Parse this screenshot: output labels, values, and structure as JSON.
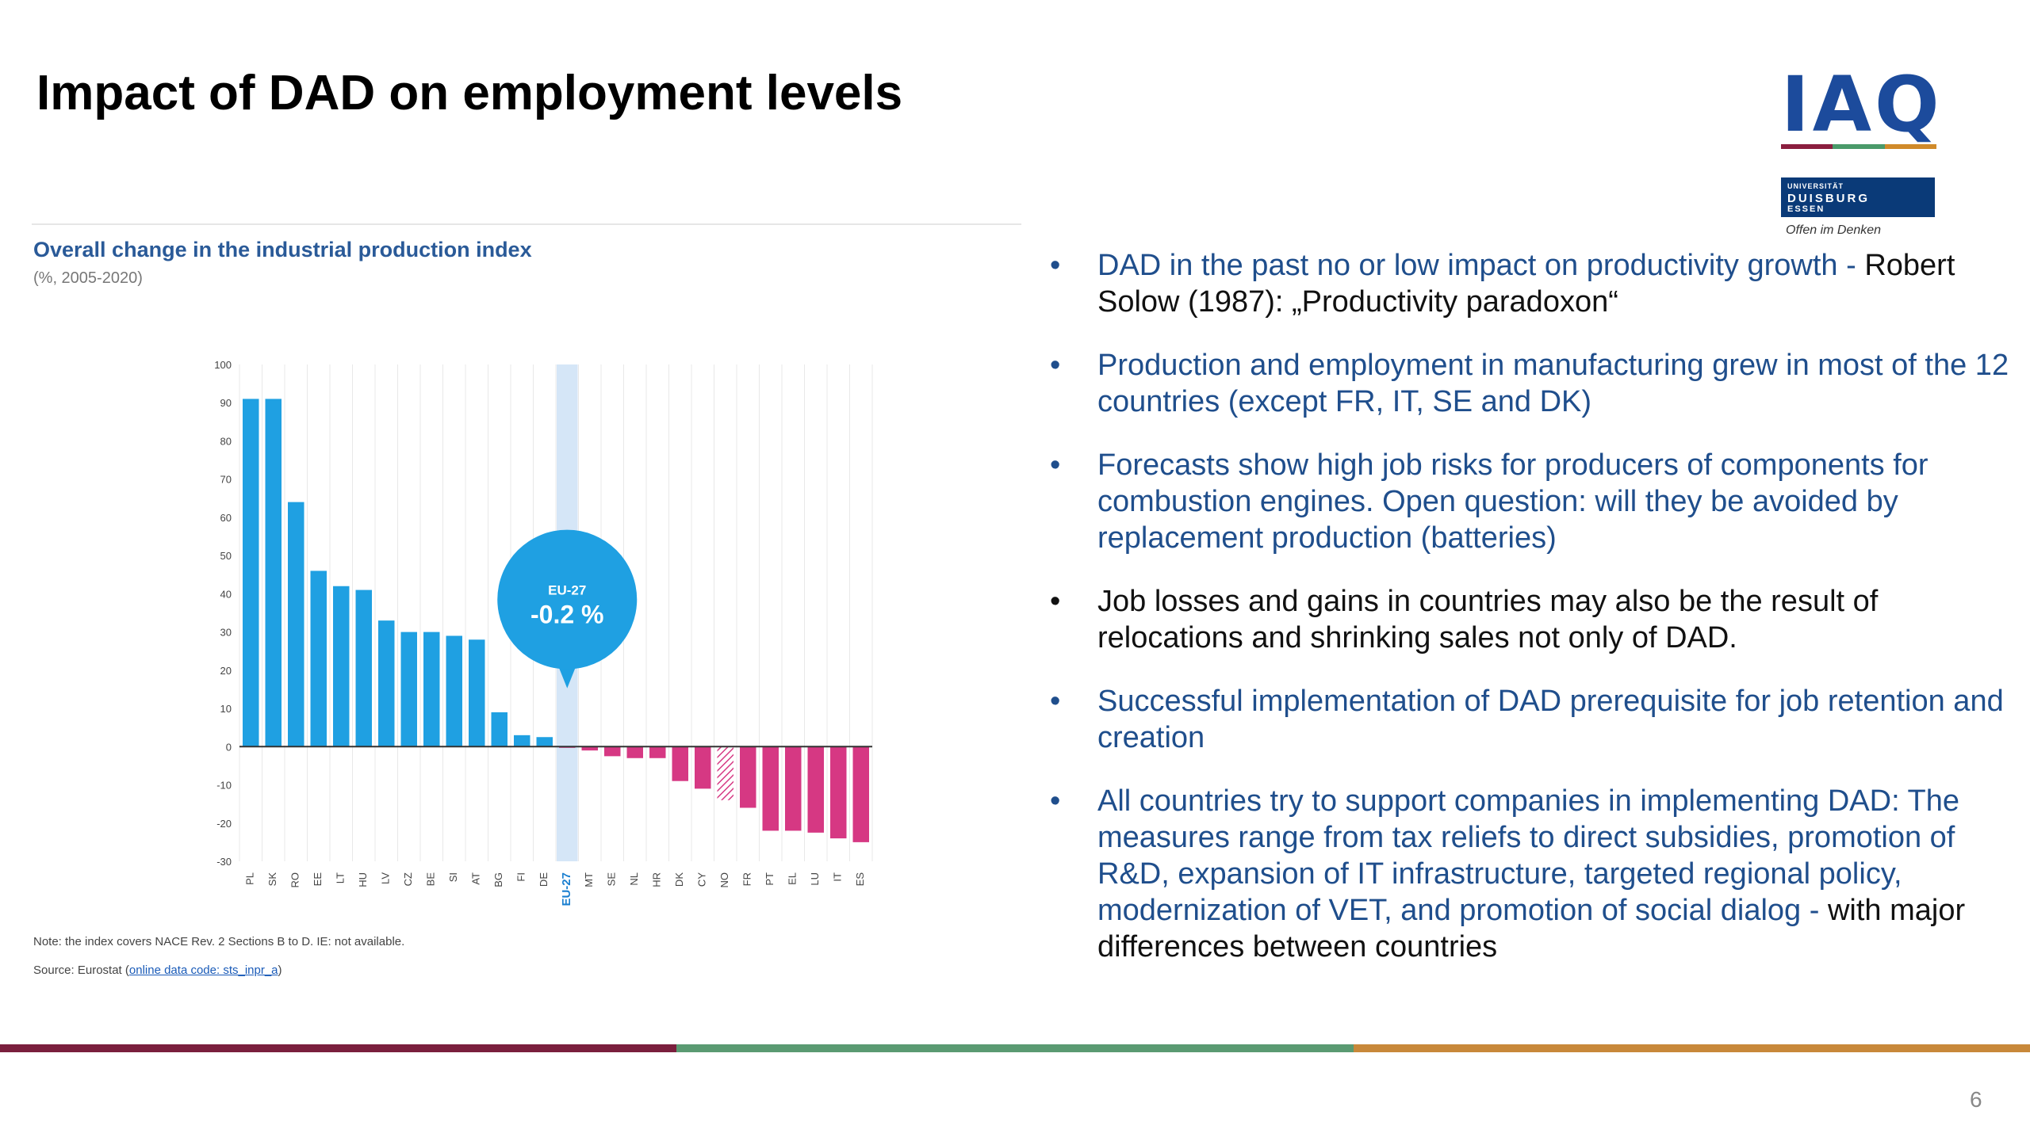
{
  "title": "Impact of DAD on employment levels",
  "logo": {
    "text": "IAQ",
    "bar_colors": [
      "#8b1e3f",
      "#4a9a6a",
      "#d08a2a"
    ],
    "uni_line1": "UNIVERSITÄT",
    "uni_line2": "DUISBURG",
    "uni_line3": "ESSEN",
    "slogan": "Offen im Denken"
  },
  "chart_header": {
    "title": "Overall change in the industrial production index",
    "subtitle": "(%, 2005-2020)"
  },
  "chart_data": {
    "type": "bar",
    "title": "Overall change in the industrial production index",
    "xlabel": "",
    "ylabel": "",
    "ylim": [
      -30,
      100
    ],
    "yticks": [
      100,
      90,
      80,
      70,
      60,
      50,
      40,
      30,
      20,
      10,
      0,
      -10,
      -20,
      -30
    ],
    "categories": [
      "PL",
      "SK",
      "RO",
      "EE",
      "LT",
      "HU",
      "LV",
      "CZ",
      "BE",
      "SI",
      "AT",
      "BG",
      "FI",
      "DE",
      "EU-27",
      "MT",
      "SE",
      "NL",
      "HR",
      "DK",
      "CY",
      "NO",
      "FR",
      "PT",
      "EL",
      "LU",
      "IT",
      "ES"
    ],
    "values": [
      91,
      91,
      64,
      46,
      42,
      41,
      33,
      30,
      30,
      29,
      28,
      9,
      3,
      2.5,
      -0.2,
      -1,
      -2.5,
      -3,
      -3,
      -9,
      -11,
      -14,
      -16,
      -22,
      -22,
      -22.5,
      -24,
      -25
    ],
    "highlight": "EU-27",
    "hatched": [
      "NO"
    ],
    "annotation_label": "EU-27",
    "annotation_value": "-0.2 %",
    "colors": {
      "positive": "#1fa0e2",
      "negative": "#d63883",
      "highlight_band": "#d5e6f7",
      "annotation": "#1fa0e2"
    },
    "grid": "vertical"
  },
  "note": "Note: the index covers NACE Rev. 2 Sections B to D. IE: not available.",
  "source_prefix": "Source: Eurostat (",
  "source_link": "online data code: sts_inpr_a",
  "source_suffix": ")",
  "bullets": [
    {
      "blue": "DAD in the past no or low impact on productivity growth -",
      "dark": "Robert Solow (1987): „Productivity paradoxon“"
    },
    {
      "blue": "Production and employment in manufacturing grew in most of the 12 countries (except FR, IT, SE and DK)",
      "dark": ""
    },
    {
      "blue": "Forecasts show high job risks for producers of components for combustion engines.  Open question: will they be avoided by replacement production (batteries)",
      "dark": ""
    },
    {
      "blue": "",
      "dark": "Job losses and gains in countries may also be the result of relocations and shrinking sales not only  of DAD."
    },
    {
      "blue": "Successful implementation of DAD prerequisite for job retention and creation",
      "dark": ""
    },
    {
      "blue": "All countries try to support companies in implementing DAD: The measures range from tax reliefs to direct subsidies, promotion of R&D, expansion of IT infrastructure, targeted regional policy,  modernization of VET, and promotion of social dialog -",
      "dark": "with major differences between countries"
    }
  ],
  "bullet_symbol": "•",
  "footer_colors": [
    "#7a1f3d",
    "#5a9a72",
    "#c8883a"
  ],
  "page_number": "6"
}
